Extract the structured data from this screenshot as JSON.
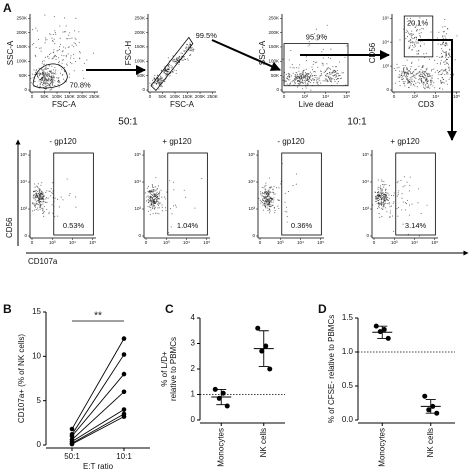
{
  "panel_a": {
    "letter": "A",
    "top_plots": [
      {
        "x_label": "FSC-A",
        "y_label": "SSC-A",
        "gate": "70.8%",
        "xticks": [
          "0",
          "50K",
          "100K",
          "150K",
          "200K",
          "250K"
        ],
        "yticks": [
          "0",
          "50K",
          "100K",
          "150K",
          "200K",
          "250K"
        ]
      },
      {
        "x_label": "FSC-A",
        "y_label": "FSC-H",
        "gate": "99.5%",
        "xticks": [
          "0",
          "50K",
          "100K",
          "150K",
          "200K",
          "250K"
        ],
        "yticks": [
          "0",
          "50K",
          "100K",
          "150K",
          "200K",
          "250K"
        ]
      },
      {
        "x_label": "Live dead",
        "y_label": "SSC-A",
        "gate": "95.9%",
        "xticks": [
          "0",
          "10³",
          "10⁴",
          "10⁵"
        ],
        "yticks": [
          "0",
          "50K",
          "100K",
          "150K",
          "200K",
          "250K"
        ]
      },
      {
        "x_label": "CD3",
        "y_label": "CD56",
        "gate": "20.1%",
        "xticks": [
          "0",
          "10³",
          "10⁴",
          "10⁵"
        ],
        "yticks": [
          "0",
          "10³",
          "10⁴",
          "10⁵"
        ]
      }
    ],
    "ratios": [
      "50:1",
      "10:1"
    ],
    "bottom_plots": [
      {
        "title": "- gp120",
        "gate": "0.53%",
        "xticks": [
          "0",
          "10³",
          "10⁴",
          "10⁵"
        ],
        "yticks": [
          "0",
          "10³",
          "10⁴",
          "10⁵"
        ]
      },
      {
        "title": "+ gp120",
        "gate": "1.04%",
        "xticks": [
          "0",
          "10³",
          "10⁴",
          "10⁵"
        ],
        "yticks": [
          "0",
          "10³",
          "10⁴",
          "10⁵"
        ]
      },
      {
        "title": "- gp120",
        "gate": "0.36%",
        "xticks": [
          "0",
          "10³",
          "10⁴",
          "10⁵"
        ],
        "yticks": [
          "0",
          "10³",
          "10⁴",
          "10⁵"
        ]
      },
      {
        "title": "+ gp120",
        "gate": "3.14%",
        "xticks": [
          "0",
          "10³",
          "10⁴",
          "10⁵"
        ],
        "yticks": [
          "0",
          "10³",
          "10⁴",
          "10⁵"
        ]
      }
    ],
    "bottom_y_label": "CD56",
    "bottom_x_label": "CD107a"
  },
  "chart_data": [
    {
      "type": "paired",
      "letter": "B",
      "ylabel": "CD107a+ (% of NK cells)",
      "xlabel": "E:T ratio",
      "categories": [
        "50:1",
        "10:1"
      ],
      "annotation": "**",
      "color": "#000000",
      "ylim": [
        0,
        15
      ],
      "yticks": [
        0,
        5,
        10,
        15
      ],
      "series": [
        {
          "values": [
            1.8,
            12
          ]
        },
        {
          "values": [
            1.2,
            10.2
          ]
        },
        {
          "values": [
            1.0,
            8
          ]
        },
        {
          "values": [
            0.6,
            6
          ]
        },
        {
          "values": [
            0.4,
            4
          ]
        },
        {
          "values": [
            0.2,
            3.5
          ]
        },
        {
          "values": [
            0.1,
            3.2
          ]
        }
      ]
    },
    {
      "type": "strip",
      "letter": "C",
      "ylabel": [
        "% of L/D+",
        "relative to PBMCs"
      ],
      "categories": [
        "Monocytes",
        "NK cells"
      ],
      "color": "#000000",
      "ylim": [
        0,
        4
      ],
      "yticks": [
        0,
        1,
        2,
        3,
        4
      ],
      "reference_line": 1,
      "values": [
        [
          1.2,
          1.05,
          0.85,
          0.55
        ],
        [
          3.6,
          2.9,
          2.7,
          2.0
        ]
      ],
      "mean": [
        0.9,
        2.8
      ],
      "sd": [
        0.3,
        0.7
      ]
    },
    {
      "type": "strip",
      "letter": "D",
      "ylabel": [
        "% of CFSE- relative to PBMCs"
      ],
      "categories": [
        "Monocytes",
        "NK cells"
      ],
      "color": "#000000",
      "ylim": [
        0,
        1.5
      ],
      "yticks": [
        {
          "value": 0,
          "label": "0.0"
        },
        {
          "value": 0.5,
          "label": "0.5"
        },
        {
          "value": 1,
          "label": "1.0"
        },
        {
          "value": 1.5,
          "label": "1.5"
        }
      ],
      "reference_line": 1,
      "values": [
        [
          1.38,
          1.33,
          1.3,
          1.2
        ],
        [
          0.35,
          0.2,
          0.15,
          0.1
        ]
      ],
      "mean": [
        1.29,
        0.2
      ],
      "sd": [
        0.09,
        0.1
      ]
    }
  ]
}
